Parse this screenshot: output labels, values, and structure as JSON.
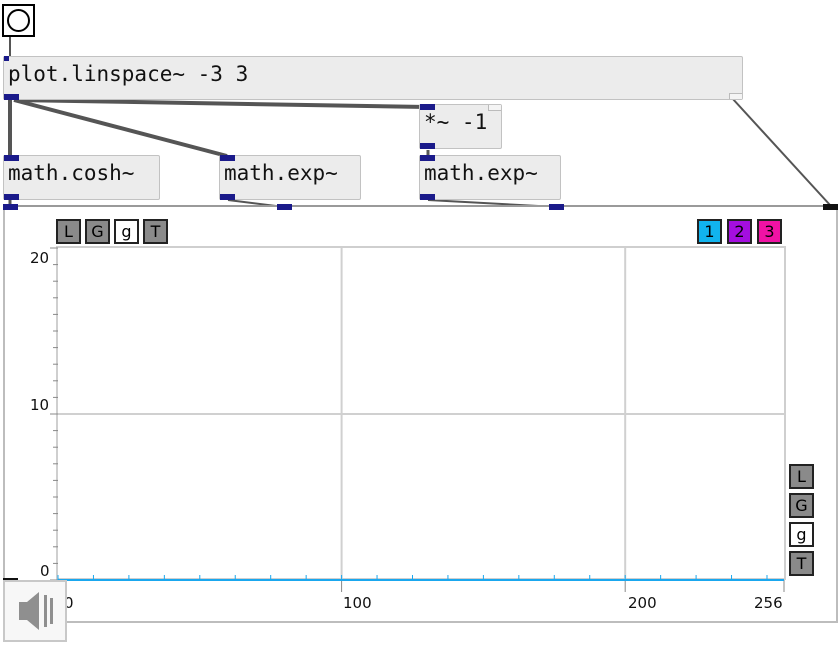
{
  "patch": {
    "objects": {
      "linspace": "plot.linspace~ -3 3",
      "multiply": "*~ -1",
      "cosh": "math.cosh~",
      "exp1": "math.exp~",
      "exp2": "math.exp~"
    }
  },
  "plot": {
    "y_ticks": [
      "20",
      "10",
      "0"
    ],
    "x_ticks": [
      "0",
      "100",
      "200",
      "256"
    ],
    "top_controls": [
      "L",
      "G",
      "g",
      "T"
    ],
    "side_controls": [
      "L",
      "G",
      "g",
      "T"
    ],
    "series_buttons": [
      {
        "label": "1",
        "color": "#11b4ee"
      },
      {
        "label": "2",
        "color": "#a40ee0"
      },
      {
        "label": "3",
        "color": "#f012a4"
      }
    ]
  },
  "colors": {
    "inlet": "#1a1a8a",
    "wire": "#555555",
    "axis_line": "#1aa7ee",
    "grid": "#d0d0d0"
  },
  "icons": {
    "bang": "bang-circle-icon",
    "speaker": "speaker-icon"
  },
  "chart_data": {
    "type": "line",
    "x": [
      0,
      256
    ],
    "xlim": [
      0,
      256
    ],
    "ylim": [
      0,
      20
    ],
    "x_ticks": [
      0,
      100,
      200,
      256
    ],
    "y_ticks": [
      0,
      10,
      20
    ],
    "grid": true,
    "series": [
      {
        "values": [
          0,
          0
        ]
      }
    ]
  }
}
